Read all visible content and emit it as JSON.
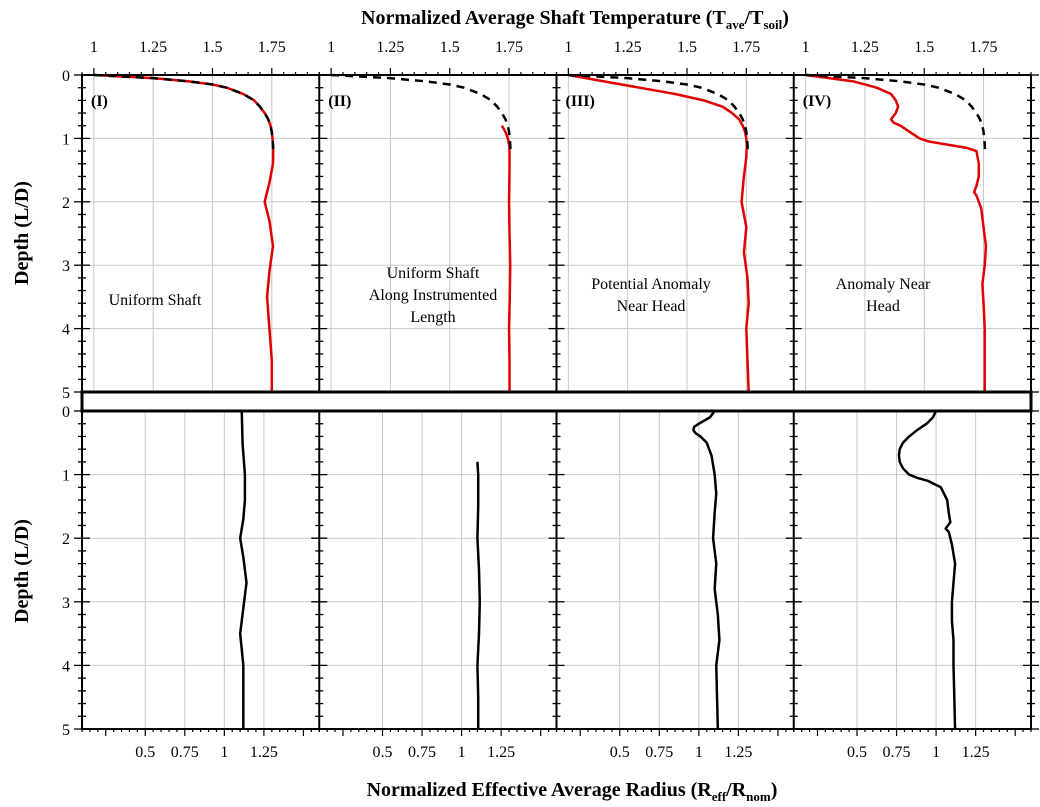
{
  "chart_data": {
    "type": "line",
    "top_axis_title": "Normalized Average Shaft Temperature (T",
    "top_axis_sub1": "ave",
    "top_axis_mid": "/T",
    "top_axis_sub2": "soil",
    "top_axis_end": ")",
    "bottom_axis_title": "Normalized Effective Average Radius (R",
    "bottom_axis_sub1": "eff",
    "bottom_axis_mid": "/R",
    "bottom_axis_sub2": "nom",
    "bottom_axis_end": ")",
    "ylabel": "Depth (L/D)",
    "temperature_ticks": [
      "1",
      "1.25",
      "1.5",
      "1.75"
    ],
    "temperature_tick_values": [
      1,
      1.25,
      1.5,
      1.75
    ],
    "radius_ticks": [
      "0.5",
      "0.75",
      "1",
      "1.25"
    ],
    "radius_tick_values": [
      0.5,
      0.75,
      1,
      1.25
    ],
    "depth_ticks": [
      "0",
      "1",
      "2",
      "3",
      "4",
      "5"
    ],
    "depth_tick_values": [
      0,
      1,
      2,
      3,
      4,
      5
    ],
    "temperature_xlim": [
      0.95,
      1.95
    ],
    "radius_xlim": [
      0.1,
      1.6
    ],
    "depth_ylim": [
      0,
      5
    ],
    "colors": {
      "measured": "#e00000",
      "reference": "#000000",
      "radius": "#000000",
      "grid": "#c8c8c8"
    },
    "reference_curve": {
      "name": "",
      "style": "dashed",
      "y": [
        0,
        0.02,
        0.05,
        0.1,
        0.15,
        0.2,
        0.3,
        0.4,
        0.5,
        0.6,
        0.7,
        0.8,
        0.9,
        1.0,
        1.1,
        1.2
      ],
      "x": [
        1.0,
        1.1,
        1.25,
        1.4,
        1.5,
        1.56,
        1.63,
        1.675,
        1.7,
        1.72,
        1.735,
        1.745,
        1.75,
        1.753,
        1.755,
        1.756
      ]
    },
    "panels": [
      {
        "label": "(I)",
        "annotation": [
          "Uniform Shaft"
        ],
        "temperature": {
          "y": [
            0,
            0.02,
            0.05,
            0.1,
            0.15,
            0.2,
            0.3,
            0.4,
            0.5,
            0.6,
            0.7,
            0.8,
            0.9,
            1.0,
            1.1,
            1.2,
            1.4,
            1.7,
            2.0,
            2.3,
            2.7,
            3.1,
            3.5,
            4.0,
            4.5,
            5.0
          ],
          "x": [
            1.0,
            1.1,
            1.25,
            1.4,
            1.5,
            1.56,
            1.63,
            1.675,
            1.7,
            1.72,
            1.735,
            1.745,
            1.75,
            1.753,
            1.755,
            1.756,
            1.755,
            1.74,
            1.72,
            1.74,
            1.755,
            1.74,
            1.73,
            1.74,
            1.75,
            1.75
          ]
        },
        "radius": {
          "y": [
            0,
            0.5,
            1.0,
            1.4,
            1.7,
            2.0,
            2.3,
            2.7,
            3.1,
            3.5,
            4.0,
            4.5,
            5.0
          ],
          "x": [
            1.11,
            1.115,
            1.13,
            1.13,
            1.12,
            1.1,
            1.12,
            1.14,
            1.12,
            1.1,
            1.12,
            1.12,
            1.12
          ]
        }
      },
      {
        "label": "(II)",
        "annotation": [
          "Uniform Shaft",
          "Along Instrumented",
          "Length"
        ],
        "temperature": {
          "y": [
            0.8,
            0.9,
            1.0,
            1.1,
            1.2,
            1.5,
            2.0,
            2.5,
            3.0,
            3.5,
            4.0,
            4.5,
            5.0
          ],
          "x": [
            1.72,
            1.735,
            1.745,
            1.75,
            1.752,
            1.752,
            1.75,
            1.752,
            1.755,
            1.753,
            1.75,
            1.752,
            1.752
          ]
        },
        "radius": {
          "y": [
            0.8,
            1.0,
            1.5,
            2.0,
            2.5,
            3.0,
            3.5,
            4.0,
            4.5,
            5.0
          ],
          "x": [
            1.1,
            1.105,
            1.105,
            1.1,
            1.11,
            1.115,
            1.11,
            1.1,
            1.105,
            1.105
          ]
        }
      },
      {
        "label": "(III)",
        "annotation": [
          "Potential Anomaly",
          "Near Head"
        ],
        "temperature": {
          "y": [
            0,
            0.1,
            0.2,
            0.3,
            0.4,
            0.5,
            0.6,
            0.7,
            0.8,
            0.9,
            1.0,
            1.1,
            1.3,
            1.6,
            2.0,
            2.4,
            2.8,
            3.2,
            3.6,
            4.0,
            4.5,
            5.0
          ],
          "x": [
            1.0,
            1.15,
            1.3,
            1.45,
            1.57,
            1.65,
            1.69,
            1.72,
            1.735,
            1.745,
            1.75,
            1.752,
            1.75,
            1.74,
            1.73,
            1.75,
            1.74,
            1.755,
            1.76,
            1.75,
            1.755,
            1.76
          ]
        },
        "radius": {
          "y": [
            0,
            0.1,
            0.2,
            0.25,
            0.3,
            0.35,
            0.4,
            0.5,
            0.7,
            1.0,
            1.3,
            1.6,
            2.0,
            2.4,
            2.8,
            3.2,
            3.6,
            4.0,
            4.5,
            5.0
          ],
          "x": [
            1.1,
            1.07,
            1.0,
            0.97,
            0.965,
            0.98,
            1.01,
            1.05,
            1.08,
            1.1,
            1.11,
            1.1,
            1.09,
            1.11,
            1.1,
            1.12,
            1.13,
            1.11,
            1.115,
            1.12
          ]
        }
      },
      {
        "label": "(IV)",
        "annotation": [
          "Anomaly Near",
          "Head"
        ],
        "temperature": {
          "y": [
            0,
            0.05,
            0.1,
            0.2,
            0.3,
            0.4,
            0.5,
            0.6,
            0.7,
            0.75,
            0.8,
            0.9,
            1.0,
            1.05,
            1.1,
            1.15,
            1.2,
            1.4,
            1.6,
            1.75,
            1.85,
            1.9,
            2.1,
            2.4,
            2.7,
            3.0,
            3.3,
            3.6,
            4.0,
            4.5,
            5.0
          ],
          "x": [
            1.0,
            1.1,
            1.2,
            1.3,
            1.36,
            1.38,
            1.39,
            1.38,
            1.36,
            1.37,
            1.4,
            1.44,
            1.48,
            1.52,
            1.6,
            1.68,
            1.72,
            1.73,
            1.73,
            1.72,
            1.71,
            1.72,
            1.74,
            1.75,
            1.76,
            1.755,
            1.745,
            1.75,
            1.755,
            1.755,
            1.755
          ]
        },
        "radius": {
          "y": [
            0,
            0.1,
            0.2,
            0.3,
            0.4,
            0.5,
            0.6,
            0.7,
            0.8,
            0.9,
            1.0,
            1.05,
            1.1,
            1.2,
            1.4,
            1.6,
            1.75,
            1.85,
            1.9,
            2.1,
            2.4,
            2.7,
            3.0,
            3.3,
            3.6,
            4.0,
            4.5,
            5.0
          ],
          "x": [
            1.0,
            0.98,
            0.94,
            0.88,
            0.83,
            0.79,
            0.77,
            0.765,
            0.77,
            0.79,
            0.83,
            0.88,
            0.95,
            1.03,
            1.07,
            1.08,
            1.09,
            1.06,
            1.08,
            1.1,
            1.12,
            1.11,
            1.1,
            1.1,
            1.11,
            1.11,
            1.115,
            1.12
          ]
        }
      }
    ]
  }
}
